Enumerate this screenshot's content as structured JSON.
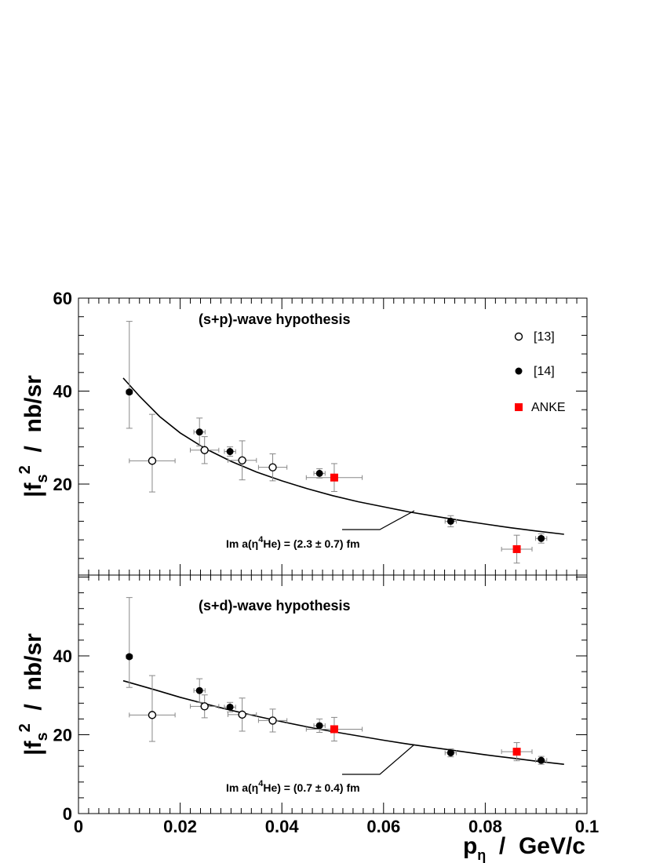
{
  "chart_data": [
    {
      "type": "scatter",
      "title": "(s+p)-wave hypothesis",
      "ylabel": {
        "main": "|f",
        "sub": "s",
        "sup": "2",
        "rest": "  /  nb/sr"
      },
      "ylim": [
        0,
        60
      ],
      "xlim": [
        0,
        0.1
      ],
      "yticks": [
        20,
        40,
        60
      ],
      "annotation": {
        "prefix": "Im a(η",
        "sup": "4",
        "suffix": "He) = (2.3 ± 0.7) fm"
      },
      "legend": [
        {
          "label": "[13]",
          "marker": "open-circle"
        },
        {
          "label": "[14]",
          "marker": "filled-circle"
        },
        {
          "label": "ANKE",
          "marker": "red-square"
        }
      ],
      "series": [
        {
          "name": "[13]",
          "marker": "open-circle",
          "color": "#000000",
          "points": [
            {
              "x": 0.0145,
              "y": 25.0,
              "xerr": 0.0045,
              "yerr": [
                6.7,
                10.0
              ]
            },
            {
              "x": 0.0248,
              "y": 27.3,
              "xerr": 0.0028,
              "yerr": [
                2.9,
                2.9
              ]
            },
            {
              "x": 0.0322,
              "y": 25.1,
              "xerr": 0.0028,
              "yerr": [
                4.2,
                4.2
              ]
            },
            {
              "x": 0.0382,
              "y": 23.6,
              "xerr": 0.0028,
              "yerr": [
                2.9,
                2.9
              ]
            }
          ]
        },
        {
          "name": "[14]",
          "marker": "filled-circle",
          "color": "#000000",
          "points": [
            {
              "x": 0.01,
              "y": 39.8,
              "xerr": 0.0006,
              "yerr": [
                7.8,
                15.2
              ]
            },
            {
              "x": 0.0238,
              "y": 31.2,
              "xerr": 0.0011,
              "yerr": [
                3.0,
                3.0
              ]
            },
            {
              "x": 0.0298,
              "y": 27.0,
              "xerr": 0.0011,
              "yerr": [
                1.0,
                1.0
              ]
            },
            {
              "x": 0.0474,
              "y": 22.3,
              "xerr": 0.0011,
              "yerr": [
                1.0,
                1.0
              ]
            },
            {
              "x": 0.0732,
              "y": 12.0,
              "xerr": 0.0011,
              "yerr": [
                1.2,
                1.2
              ]
            },
            {
              "x": 0.091,
              "y": 8.3,
              "xerr": 0.0011,
              "yerr": [
                1.0,
                1.0
              ]
            }
          ]
        },
        {
          "name": "ANKE",
          "marker": "red-square",
          "color": "#ff0000",
          "points": [
            {
              "x": 0.0503,
              "y": 21.4,
              "xerr": 0.0055,
              "yerr": [
                3.0,
                3.0
              ]
            },
            {
              "x": 0.0862,
              "y": 6.0,
              "xerr": 0.003,
              "yerr": [
                3.0,
                3.0
              ]
            }
          ]
        }
      ],
      "fit_curve": {
        "x": [
          0.0088,
          0.012,
          0.016,
          0.02,
          0.025,
          0.03,
          0.035,
          0.04,
          0.045,
          0.05,
          0.055,
          0.06,
          0.065,
          0.07,
          0.075,
          0.08,
          0.085,
          0.09,
          0.0955
        ],
        "y": [
          42.8,
          38.9,
          34.5,
          31.0,
          27.6,
          24.9,
          22.6,
          20.7,
          19.0,
          17.5,
          16.2,
          15.1,
          14.0,
          13.1,
          12.2,
          11.4,
          10.6,
          9.9,
          9.2
        ]
      }
    },
    {
      "type": "scatter",
      "title": "(s+d)-wave hypothesis",
      "ylabel": {
        "main": "|f",
        "sub": "s",
        "sup": "2",
        "rest": "  /  nb/sr"
      },
      "xlabel": {
        "main": "p",
        "sub": "η",
        "rest": "  /  GeV/c"
      },
      "ylim": [
        0,
        60
      ],
      "xlim": [
        0,
        0.1
      ],
      "yticks": [
        0,
        20,
        40
      ],
      "xticks": [
        0,
        0.02,
        0.04,
        0.06,
        0.08,
        0.1
      ],
      "xticklabels": [
        "0",
        "0.02",
        "0.04",
        "0.06",
        "0.08",
        "0.1"
      ],
      "annotation": {
        "prefix": "Im a(η",
        "sup": "4",
        "suffix": "He) = (0.7 ± 0.4) fm"
      },
      "series": [
        {
          "name": "[13]",
          "marker": "open-circle",
          "color": "#000000",
          "points": [
            {
              "x": 0.0145,
              "y": 25.0,
              "xerr": 0.0045,
              "yerr": [
                6.7,
                10.0
              ]
            },
            {
              "x": 0.0248,
              "y": 27.2,
              "xerr": 0.0028,
              "yerr": [
                2.9,
                2.9
              ]
            },
            {
              "x": 0.0322,
              "y": 25.1,
              "xerr": 0.0028,
              "yerr": [
                4.2,
                4.2
              ]
            },
            {
              "x": 0.0382,
              "y": 23.6,
              "xerr": 0.0028,
              "yerr": [
                2.9,
                2.9
              ]
            }
          ]
        },
        {
          "name": "[14]",
          "marker": "filled-circle",
          "color": "#000000",
          "points": [
            {
              "x": 0.01,
              "y": 39.8,
              "xerr": 0.0006,
              "yerr": [
                7.8,
                15.0
              ]
            },
            {
              "x": 0.0238,
              "y": 31.2,
              "xerr": 0.0011,
              "yerr": [
                3.0,
                3.0
              ]
            },
            {
              "x": 0.0298,
              "y": 27.0,
              "xerr": 0.0011,
              "yerr": [
                1.2,
                1.2
              ]
            },
            {
              "x": 0.0474,
              "y": 22.3,
              "xerr": 0.0011,
              "yerr": [
                1.7,
                1.7
              ]
            },
            {
              "x": 0.0732,
              "y": 15.4,
              "xerr": 0.0011,
              "yerr": [
                1.0,
                1.0
              ]
            },
            {
              "x": 0.091,
              "y": 13.5,
              "xerr": 0.0011,
              "yerr": [
                1.0,
                1.0
              ]
            }
          ]
        },
        {
          "name": "ANKE",
          "marker": "red-square",
          "color": "#ff0000",
          "points": [
            {
              "x": 0.0503,
              "y": 21.4,
              "xerr": 0.0055,
              "yerr": [
                3.0,
                3.0
              ]
            },
            {
              "x": 0.0862,
              "y": 15.7,
              "xerr": 0.003,
              "yerr": [
                2.3,
                2.3
              ]
            }
          ]
        }
      ],
      "fit_curve": {
        "x": [
          0.0088,
          0.015,
          0.02,
          0.025,
          0.03,
          0.035,
          0.04,
          0.045,
          0.05,
          0.055,
          0.06,
          0.065,
          0.07,
          0.075,
          0.08,
          0.085,
          0.09,
          0.0955
        ],
        "y": [
          33.7,
          31.4,
          29.5,
          27.8,
          26.2,
          24.7,
          23.3,
          22.0,
          20.8,
          19.7,
          18.6,
          17.6,
          16.7,
          15.8,
          14.9,
          14.1,
          13.3,
          12.5
        ]
      }
    }
  ]
}
